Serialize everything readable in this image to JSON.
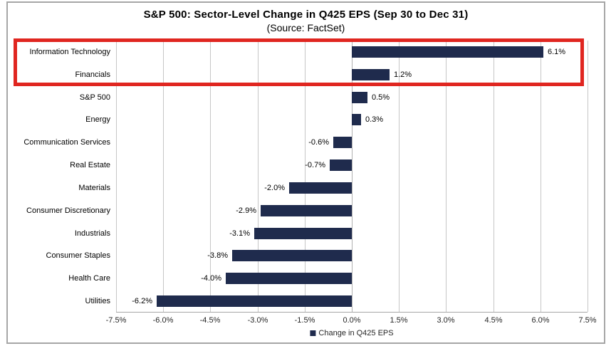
{
  "header": {
    "title": "S&P 500: Sector-Level Change in Q425 EPS (Sep 30 to Dec 31)",
    "subtitle": "(Source: FactSet)"
  },
  "chart_data": {
    "type": "bar",
    "orientation": "horizontal",
    "categories": [
      "Information Technology",
      "Financials",
      "S&P 500",
      "Energy",
      "Communication Services",
      "Real Estate",
      "Materials",
      "Consumer Discretionary",
      "Industrials",
      "Consumer Staples",
      "Health Care",
      "Utilities"
    ],
    "values": [
      6.1,
      1.2,
      0.5,
      0.3,
      -0.6,
      -0.7,
      -2.0,
      -2.9,
      -3.1,
      -3.8,
      -4.0,
      -6.2
    ],
    "value_labels": [
      "6.1%",
      "1.2%",
      "0.5%",
      "0.3%",
      "-0.6%",
      "-0.7%",
      "-2.0%",
      "-2.9%",
      "-3.1%",
      "-3.8%",
      "-4.0%",
      "-6.2%"
    ],
    "x_ticks": [
      -7.5,
      -6.0,
      -4.5,
      -3.0,
      -1.5,
      0.0,
      1.5,
      3.0,
      4.5,
      6.0,
      7.5
    ],
    "x_tick_labels": [
      "-7.5%",
      "-6.0%",
      "-4.5%",
      "-3.0%",
      "-1.5%",
      "0.0%",
      "1.5%",
      "3.0%",
      "4.5%",
      "6.0%",
      "7.5%"
    ],
    "xlim": [
      -7.5,
      7.5
    ],
    "grid": true,
    "legend": {
      "label": "Change in Q425 EPS",
      "position": "bottom-center"
    },
    "colors": {
      "bar": "#1f2b4d",
      "gridline": "#c6c6c6",
      "zero_line": "#b0b0b0",
      "axis_line": "#a6a6a6",
      "frame_border": "#a6a6a6"
    }
  },
  "annotation": {
    "highlight_box_color": "#e02620",
    "highlighted_categories": [
      "Information Technology",
      "Financials"
    ]
  }
}
